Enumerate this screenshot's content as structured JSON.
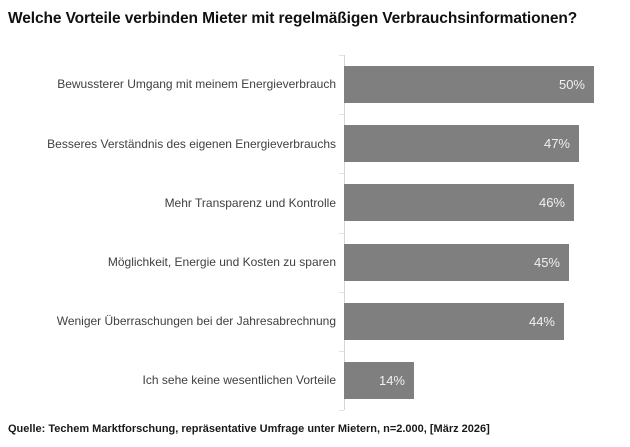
{
  "page": {
    "background": "#ffffff"
  },
  "chart_data": {
    "type": "bar",
    "orientation": "horizontal",
    "title": "Welche Vorteile verbinden Mieter mit regelmäßigen Verbrauchsinformationen?",
    "categories": [
      "Bewussterer Umgang mit meinem Energieverbrauch",
      "Besseres Verständnis des eigenen Energieverbrauchs",
      "Mehr Transparenz und Kontrolle",
      "Möglichkeit, Energie und Kosten zu sparen",
      "Weniger Überraschungen bei der Jahresabrechnung",
      "Ich sehe keine wesentlichen Vorteile"
    ],
    "values": [
      50,
      47,
      46,
      45,
      44,
      14
    ],
    "unit": "%",
    "value_labels": [
      "50%",
      "47%",
      "46%",
      "45%",
      "44%",
      "14%"
    ],
    "xlabel": "",
    "ylabel": "",
    "xlim": [
      0,
      57
    ],
    "grid": false,
    "legend": false,
    "value_labels_position": "inside-end",
    "bar_color": "#7f7f7f",
    "value_label_color": "#f0f0f0",
    "category_label_color": "#404040",
    "axis_color": "#d6d6d6",
    "source": "Quelle: Techem Marktforschung, repräsentative Umfrage unter Mietern, n=2.000, [März 2026]"
  }
}
